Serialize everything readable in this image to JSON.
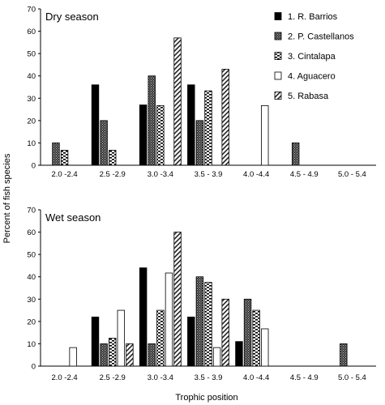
{
  "chart_data": [
    {
      "type": "bar",
      "title": "Dry season",
      "xlabel": "",
      "ylabel": "Percent of fish species",
      "ylim": [
        0,
        70
      ],
      "yticks": [
        0,
        10,
        20,
        30,
        40,
        50,
        60,
        70
      ],
      "grid": false,
      "legend_position": "top-right",
      "categories": [
        "2.0 -2.4",
        "2.5 -2.9",
        "3.0 -3.4",
        "3.5 - 3.9",
        "4.0 -4.4",
        "4.5 - 4.9",
        "5.0 - 5.4"
      ],
      "series": [
        {
          "name": "1. R. Barrios",
          "pattern": "solid",
          "values": [
            0,
            36,
            27,
            36,
            0,
            0,
            0
          ]
        },
        {
          "name": "2. P. Castellanos",
          "pattern": "crosshatch",
          "values": [
            10,
            20,
            40,
            20,
            0,
            10,
            0
          ]
        },
        {
          "name": "3. Cintalapa",
          "pattern": "hbars",
          "values": [
            6.7,
            6.7,
            26.7,
            33.3,
            0,
            0,
            0
          ]
        },
        {
          "name": "4. Aguacero",
          "pattern": "open",
          "values": [
            0,
            0,
            0,
            0,
            26.7,
            0,
            0
          ]
        },
        {
          "name": "5. Rabasa",
          "pattern": "diagonal",
          "values": [
            0,
            0,
            57,
            43,
            0,
            0,
            0
          ]
        }
      ]
    },
    {
      "type": "bar",
      "title": "Wet season",
      "xlabel": "Trophic position",
      "ylabel": "Percent of fish species",
      "ylim": [
        0,
        70
      ],
      "yticks": [
        0,
        10,
        20,
        30,
        40,
        50,
        60,
        70
      ],
      "grid": false,
      "categories": [
        "2.0 -2.4",
        "2.5 -2.9",
        "3.0 -3.4",
        "3.5 - 3.9",
        "4.0 -4.4",
        "4.5 - 4.9",
        "5.0 - 5.4"
      ],
      "series": [
        {
          "name": "1. R. Barrios",
          "pattern": "solid",
          "values": [
            0,
            22,
            44,
            22,
            11,
            0,
            0
          ]
        },
        {
          "name": "2. P. Castellanos",
          "pattern": "crosshatch",
          "values": [
            0,
            10,
            10,
            40,
            30,
            0,
            10
          ]
        },
        {
          "name": "3. Cintalapa",
          "pattern": "hbars",
          "values": [
            0,
            12.5,
            25,
            37.5,
            25,
            0,
            0
          ]
        },
        {
          "name": "4. Aguacero",
          "pattern": "open",
          "values": [
            8.3,
            25,
            41.7,
            8.3,
            16.7,
            0,
            0
          ]
        },
        {
          "name": "5. Rabasa",
          "pattern": "diagonal",
          "values": [
            0,
            10,
            60,
            30,
            0,
            0,
            0
          ]
        }
      ]
    }
  ]
}
